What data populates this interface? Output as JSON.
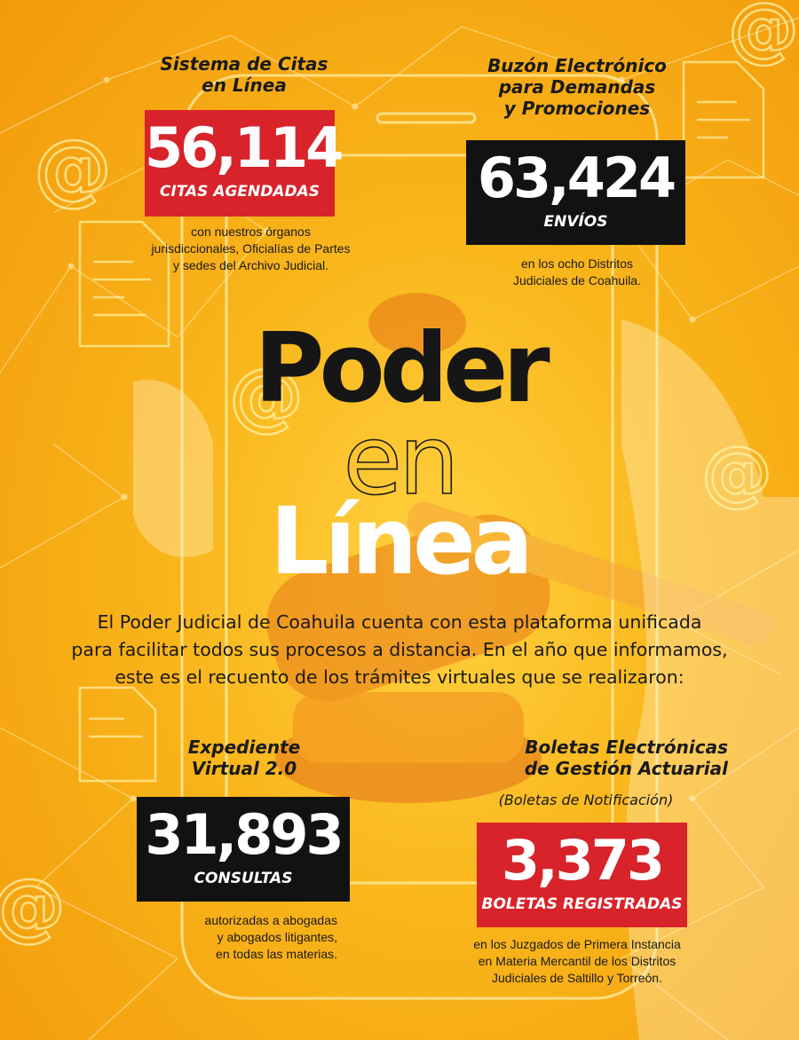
{
  "hero": {
    "line1": "Poder",
    "line2": "en",
    "line3": "Línea"
  },
  "intro": {
    "line1": "El Poder Judicial de Coahuila cuenta con esta plataforma unificada",
    "line2": "para facilitar todos sus procesos a distancia. En el año que informamos,",
    "line3": "este es el recuento de los trámites virtuales que se realizaron:"
  },
  "citas": {
    "title_line1": "Sistema de Citas",
    "title_line2": "en Línea",
    "number": "56,114",
    "unit": "CITAS AGENDADAS",
    "note_line1": "con nuestros órganos",
    "note_line2": "jurisdiccionales, Oficialías de Partes",
    "note_line3": "y sedes del Archivo Judicial.",
    "box_color": "#d8232a"
  },
  "buzon": {
    "title_line1": "Buzón Electrónico",
    "title_line2": "para Demandas",
    "title_line3": "y Promociones",
    "number": "63,424",
    "unit": "ENVÍOS",
    "note_line1": "en los ocho Distritos",
    "note_line2": "Judiciales de Coahuila.",
    "box_color": "#121212"
  },
  "expediente": {
    "title_line1": "Expediente",
    "title_line2": "Virtual 2.0",
    "number": "31,893",
    "unit": "CONSULTAS",
    "note_line1": "autorizadas a abogadas",
    "note_line2": "y abogados litigantes,",
    "note_line3": "en todas las materias.",
    "box_color": "#121212"
  },
  "boletas": {
    "title_line1": "Boletas Electrónicas",
    "title_line2": "de Gestión Actuarial",
    "subtitle": "(Boletas de Notificación)",
    "number": "3,373",
    "unit": "BOLETAS REGISTRADAS",
    "note_line1": "en los Juzgados de Primera Instancia",
    "note_line2": "en Materia Mercantil de los Distritos",
    "note_line3": "Judiciales de Saltillo y Torreón.",
    "box_color": "#d8232a"
  },
  "icons": {
    "at_symbol": "@",
    "background": [
      "smartphone-outline",
      "gavel-illustration",
      "hand-illustration",
      "document-icon",
      "network-lines"
    ]
  },
  "colors": {
    "background_center": "#ffd23f",
    "background_edge": "#f29a0c",
    "red": "#d8232a",
    "black": "#121212"
  }
}
